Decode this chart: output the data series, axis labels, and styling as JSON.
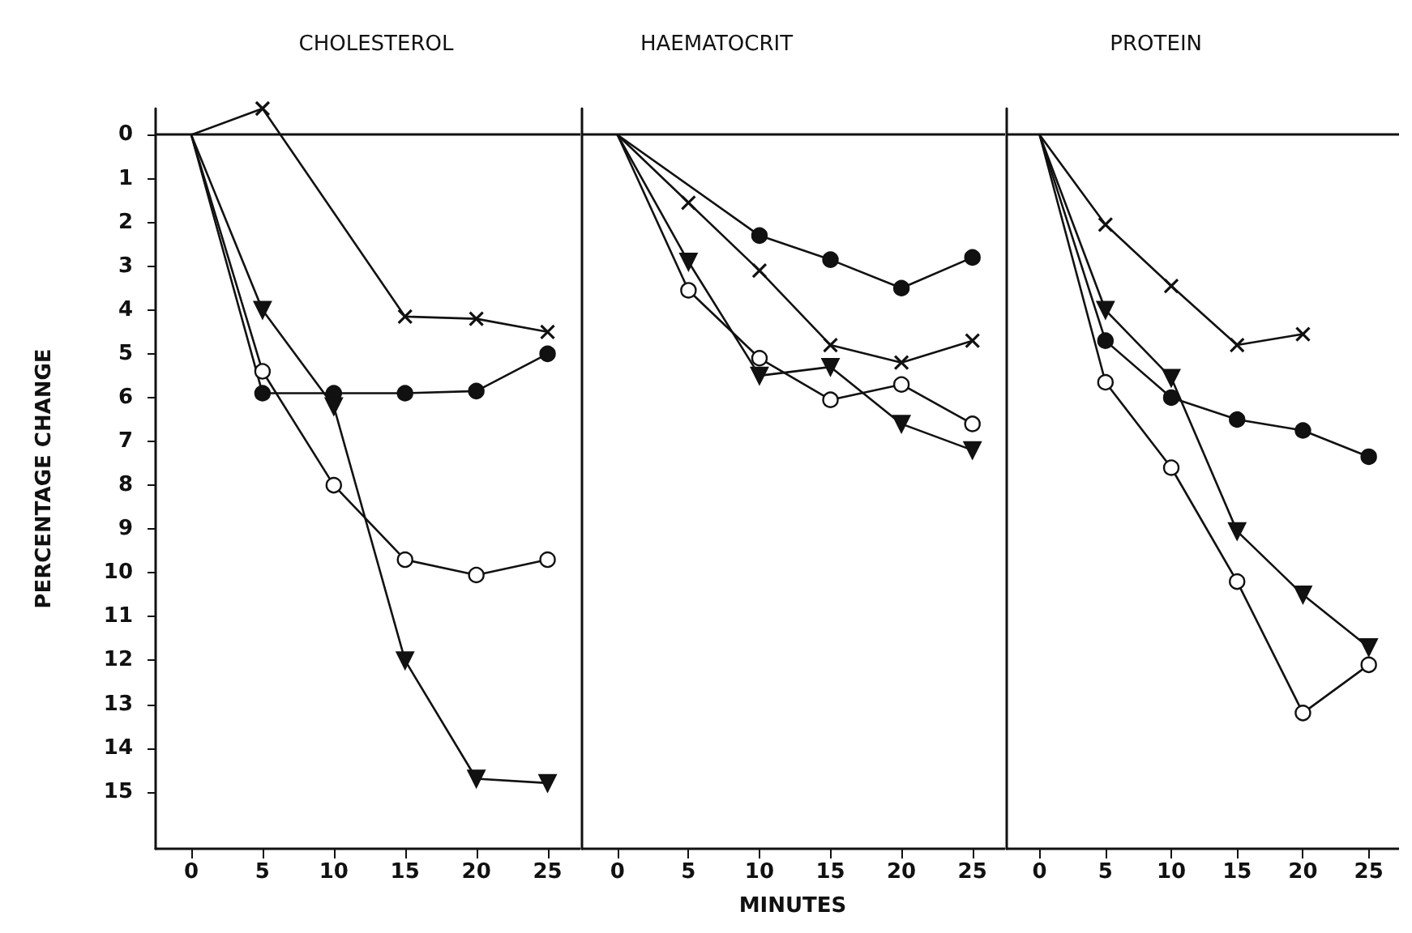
{
  "chart_data": [
    {
      "type": "line",
      "title": "CHOLESTEROL",
      "ylabel": "PERCENTAGE CHANGE",
      "x": [
        0,
        5,
        10,
        15,
        20,
        25
      ],
      "xlim": [
        -2.5,
        27.3
      ],
      "xticks": [
        0,
        5,
        10,
        15,
        20,
        25
      ],
      "ylim": [
        16.3,
        -0.6
      ],
      "yticks": [
        0,
        1,
        2,
        3,
        4,
        5,
        6,
        7,
        8,
        9,
        10,
        11,
        12,
        13,
        14,
        15
      ],
      "grid": false,
      "line_style": "solid",
      "ref_lines": [
        {
          "axis": "y",
          "value": 0
        }
      ],
      "series": [
        {
          "color": "#111111",
          "marker": "cross",
          "values": [
            0,
            -0.6,
            null,
            4.15,
            4.2,
            4.5
          ]
        },
        {
          "color": "#111111",
          "marker": "circle",
          "values": [
            0,
            5.9,
            5.9,
            5.9,
            5.85,
            5.0
          ]
        },
        {
          "color": "#ffffff",
          "marker": "circle",
          "values": [
            0,
            5.4,
            8.0,
            9.7,
            10.05,
            9.7
          ]
        },
        {
          "color": "#111111",
          "marker": "triangle",
          "values": [
            0,
            4.0,
            6.2,
            12.0,
            14.7,
            14.8
          ]
        }
      ]
    },
    {
      "type": "line",
      "title": "HAEMATOCRIT",
      "xlabel": "MINUTES",
      "x": [
        0,
        5,
        10,
        15,
        20,
        25
      ],
      "xlim": [
        -2.5,
        27.3
      ],
      "xticks": [
        0,
        5,
        10,
        15,
        20,
        25
      ],
      "ylim": [
        16.3,
        -0.6
      ],
      "yticks": [
        0,
        1,
        2,
        3,
        4,
        5,
        6,
        7,
        8,
        9,
        10,
        11,
        12,
        13,
        14,
        15
      ],
      "tick_labels": "x",
      "grid": false,
      "line_style": "solid",
      "ref_lines": [
        {
          "axis": "y",
          "value": 0
        }
      ],
      "series": [
        {
          "color": "#111111",
          "marker": "cross",
          "values": [
            0,
            1.55,
            3.1,
            4.8,
            5.2,
            4.7
          ]
        },
        {
          "color": "#111111",
          "marker": "circle",
          "values": [
            0,
            null,
            2.3,
            2.85,
            3.5,
            2.8
          ]
        },
        {
          "color": "#ffffff",
          "marker": "circle",
          "values": [
            0,
            3.55,
            5.1,
            6.05,
            5.7,
            6.6
          ]
        },
        {
          "color": "#111111",
          "marker": "triangle",
          "values": [
            0,
            2.9,
            5.5,
            5.3,
            6.6,
            7.2
          ]
        }
      ]
    },
    {
      "type": "line",
      "title": "PROTEIN",
      "x": [
        0,
        5,
        10,
        15,
        20,
        25
      ],
      "xlim": [
        -2.5,
        27.3
      ],
      "xticks": [
        0,
        5,
        10,
        15,
        20,
        25
      ],
      "ylim": [
        16.3,
        -0.6
      ],
      "yticks": [
        0,
        1,
        2,
        3,
        4,
        5,
        6,
        7,
        8,
        9,
        10,
        11,
        12,
        13,
        14,
        15
      ],
      "tick_labels": "x",
      "grid": false,
      "line_style": "solid",
      "ref_lines": [
        {
          "axis": "y",
          "value": 0
        }
      ],
      "series": [
        {
          "color": "#111111",
          "marker": "cross",
          "values": [
            0,
            2.05,
            3.45,
            4.8,
            4.55,
            null
          ]
        },
        {
          "color": "#111111",
          "marker": "circle",
          "values": [
            0,
            4.7,
            6.0,
            6.5,
            6.75,
            7.35
          ]
        },
        {
          "color": "#ffffff",
          "marker": "circle",
          "values": [
            0,
            5.65,
            7.6,
            10.2,
            13.2,
            12.1
          ]
        },
        {
          "color": "#111111",
          "marker": "triangle",
          "values": [
            0,
            4.0,
            5.55,
            9.05,
            10.5,
            11.7
          ]
        }
      ]
    }
  ]
}
